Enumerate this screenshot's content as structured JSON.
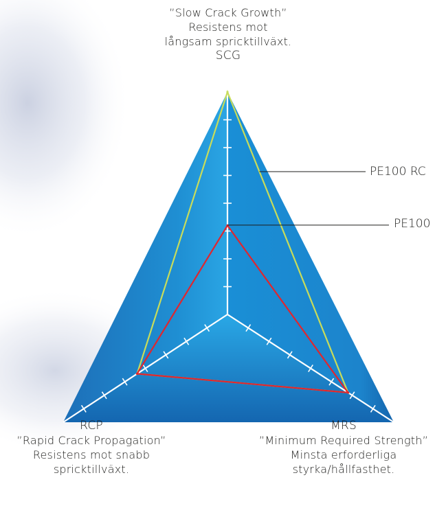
{
  "chart_data": {
    "type": "radar",
    "axes": [
      {
        "code": "SCG",
        "name": "”Slow Crack Growth”",
        "description_lines": [
          "Resistens mot",
          "långsam spricktillväxt."
        ]
      },
      {
        "code": "MRS",
        "name": "”Minimum Required Strength”",
        "description_lines": [
          "Minsta erforderliga",
          "styrka/hållfasthet."
        ]
      },
      {
        "code": "RCP",
        "name": "”Rapid Crack Propagation”",
        "description_lines": [
          "Resistens mot snabb",
          "spricktillväxt."
        ]
      }
    ],
    "scale_max": 8,
    "series": [
      {
        "name": "PE100 RC",
        "values": [
          8,
          5.8,
          4.4
        ],
        "color": "#c8dc5a"
      },
      {
        "name": "PE100",
        "values": [
          3.2,
          5.8,
          4.4
        ],
        "color": "#e0262e"
      }
    ],
    "background_color": "#1f96d7",
    "axis_color": "#ffffff"
  }
}
